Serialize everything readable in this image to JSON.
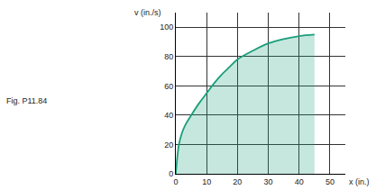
{
  "chart_data": {
    "type": "area",
    "x_label": "x (in.)",
    "y_label": "v (in./s)",
    "caption": "Fig. P11.84",
    "x": [
      0,
      1,
      2,
      3,
      5,
      7.5,
      10,
      12.5,
      15,
      17.5,
      20,
      25,
      30,
      35,
      40,
      45
    ],
    "values": [
      0,
      20,
      28,
      33,
      40,
      48,
      55,
      62,
      68,
      73,
      78,
      84,
      89,
      92,
      94,
      95
    ],
    "color": "#1a9e7a",
    "xlim": [
      0,
      55
    ],
    "ylim": [
      0,
      110
    ],
    "xticks": [
      0,
      10,
      20,
      30,
      40,
      50
    ],
    "yticks": [
      0,
      20,
      40,
      60,
      80,
      100
    ],
    "grid": true
  }
}
